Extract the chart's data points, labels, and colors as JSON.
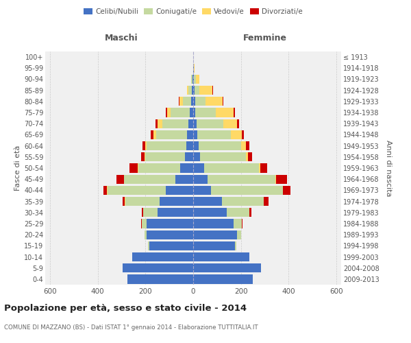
{
  "age_groups": [
    "0-4",
    "5-9",
    "10-14",
    "15-19",
    "20-24",
    "25-29",
    "30-34",
    "35-39",
    "40-44",
    "45-49",
    "50-54",
    "55-59",
    "60-64",
    "65-69",
    "70-74",
    "75-79",
    "80-84",
    "85-89",
    "90-94",
    "95-99",
    "100+"
  ],
  "birth_years": [
    "2009-2013",
    "2004-2008",
    "1999-2003",
    "1994-1998",
    "1989-1993",
    "1984-1988",
    "1979-1983",
    "1974-1978",
    "1969-1973",
    "1964-1968",
    "1959-1963",
    "1954-1958",
    "1949-1953",
    "1944-1948",
    "1939-1943",
    "1934-1938",
    "1929-1933",
    "1924-1928",
    "1919-1923",
    "1914-1918",
    "≤ 1913"
  ],
  "maschi": {
    "celibi": [
      275,
      295,
      255,
      185,
      195,
      195,
      150,
      140,
      115,
      75,
      55,
      35,
      30,
      25,
      20,
      15,
      8,
      5,
      3,
      1,
      1
    ],
    "coniugati": [
      0,
      0,
      0,
      5,
      10,
      20,
      60,
      145,
      245,
      215,
      175,
      165,
      165,
      130,
      110,
      80,
      35,
      15,
      5,
      0,
      0
    ],
    "vedovi": [
      0,
      0,
      0,
      0,
      0,
      0,
      0,
      1,
      2,
      1,
      2,
      3,
      5,
      12,
      20,
      15,
      15,
      5,
      2,
      0,
      0
    ],
    "divorziati": [
      0,
      0,
      0,
      0,
      0,
      2,
      5,
      10,
      15,
      30,
      35,
      15,
      12,
      10,
      8,
      5,
      2,
      0,
      0,
      0,
      0
    ]
  },
  "femmine": {
    "nubili": [
      250,
      285,
      235,
      175,
      185,
      170,
      140,
      120,
      75,
      60,
      45,
      30,
      22,
      18,
      15,
      10,
      8,
      5,
      3,
      2,
      1
    ],
    "coniugate": [
      0,
      0,
      0,
      5,
      15,
      35,
      95,
      175,
      300,
      285,
      230,
      190,
      180,
      140,
      110,
      85,
      45,
      20,
      8,
      1,
      0
    ],
    "vedove": [
      0,
      0,
      0,
      0,
      0,
      0,
      0,
      1,
      2,
      2,
      5,
      10,
      20,
      45,
      60,
      75,
      70,
      55,
      15,
      2,
      0
    ],
    "divorziate": [
      0,
      0,
      0,
      0,
      0,
      2,
      8,
      20,
      30,
      45,
      30,
      18,
      12,
      10,
      8,
      5,
      3,
      2,
      0,
      0,
      0
    ]
  },
  "colors": {
    "celibi": "#4472C4",
    "coniugati": "#C5D9A0",
    "vedovi": "#FFD966",
    "divorziati": "#CC0000"
  },
  "xlim": 620,
  "title": "Popolazione per età, sesso e stato civile - 2014",
  "subtitle": "COMUNE DI MAZZANO (BS) - Dati ISTAT 1° gennaio 2014 - Elaborazione TUTTITALIA.IT",
  "ylabel_left": "Fasce di età",
  "ylabel_right": "Anni di nascita",
  "xlabel_left": "Maschi",
  "xlabel_right": "Femmine",
  "bg_color": "#f0f0f0",
  "grid_color": "#cccccc"
}
